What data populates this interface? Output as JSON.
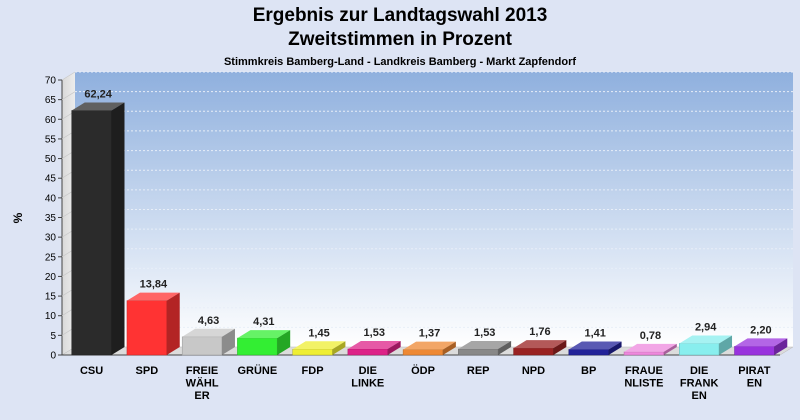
{
  "chart_data": {
    "type": "bar",
    "title": "Ergebnis zur Landtagswahl 2013",
    "title2": "Zweitstimmen in Prozent",
    "subtitle": "Stimmkreis Bamberg-Land - Landkreis Bamberg - Markt Zapfendorf",
    "ylabel": "%",
    "ylim": [
      0,
      70
    ],
    "yticks": [
      0,
      5,
      10,
      15,
      20,
      25,
      30,
      35,
      40,
      45,
      50,
      55,
      60,
      65,
      70
    ],
    "grid": true,
    "categories": [
      [
        "CSU"
      ],
      [
        "SPD"
      ],
      [
        "FREIE",
        "WÄHL",
        "ER"
      ],
      [
        "GRÜNE"
      ],
      [
        "FDP"
      ],
      [
        "DIE",
        "LINKE"
      ],
      [
        "ÖDP"
      ],
      [
        "REP"
      ],
      [
        "NPD"
      ],
      [
        "BP"
      ],
      [
        "FRAUE",
        "NLISTE"
      ],
      [
        "DIE",
        "FRANK",
        "EN"
      ],
      [
        "PIRAT",
        "EN"
      ]
    ],
    "values": [
      62.24,
      13.84,
      4.63,
      4.31,
      1.45,
      1.53,
      1.37,
      1.53,
      1.76,
      1.41,
      0.78,
      2.94,
      2.2
    ],
    "value_labels": [
      "62,24",
      "13,84",
      "4,63",
      "4,31",
      "1,45",
      "1,53",
      "1,37",
      "1,53",
      "1,76",
      "1,41",
      "0,78",
      "2,94",
      "2,20"
    ],
    "colors": [
      "#2b2b2b",
      "#ff3333",
      "#c8c8c8",
      "#33ee33",
      "#eeee33",
      "#dd2288",
      "#ee8833",
      "#888888",
      "#992222",
      "#222299",
      "#ee88dd",
      "#88eeee",
      "#9933dd"
    ]
  }
}
